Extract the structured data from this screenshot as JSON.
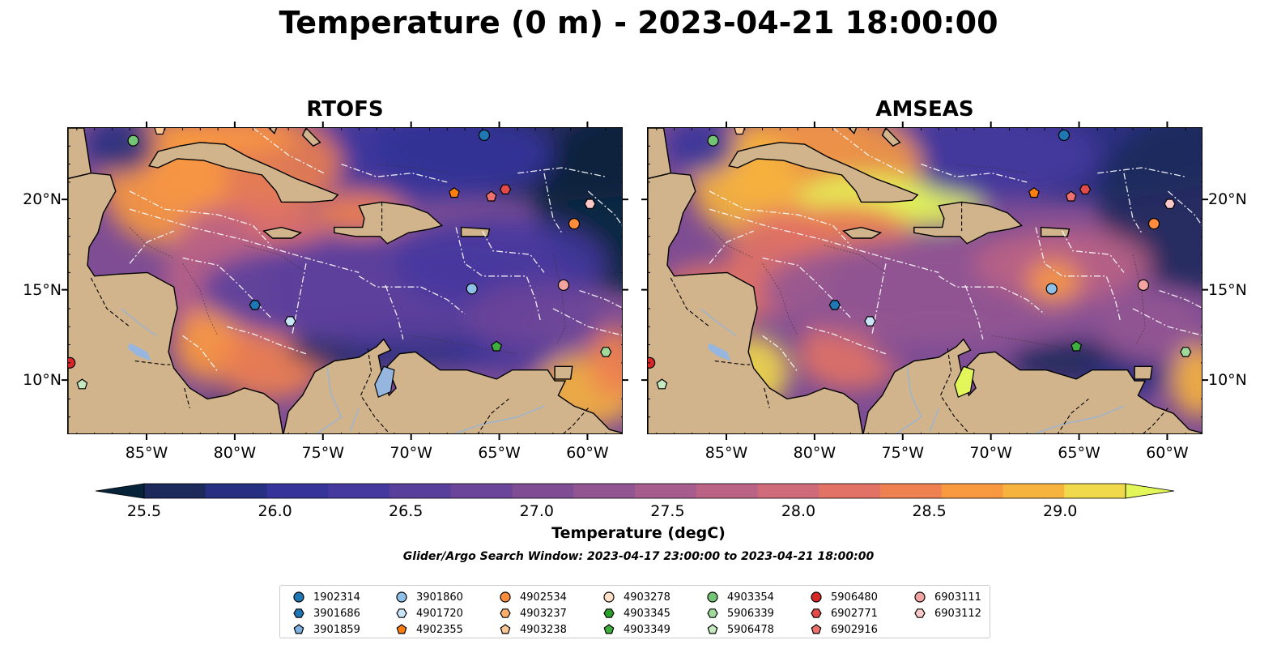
{
  "title": "Temperature (0 m) - 2023-04-21 18:00:00",
  "panels": [
    {
      "title": "RTOFS"
    },
    {
      "title": "AMSEAS"
    }
  ],
  "map": {
    "lon_range": [
      -89.5,
      -58.0
    ],
    "lat_range": [
      7.0,
      24.0
    ],
    "x_ticks": [
      "85°W",
      "80°W",
      "75°W",
      "70°W",
      "65°W",
      "60°W"
    ],
    "x_tick_values": [
      -85,
      -80,
      -75,
      -70,
      -65,
      -60
    ],
    "y_ticks": [
      "20°N",
      "15°N",
      "10°N"
    ],
    "y_tick_values": [
      20,
      15,
      10
    ],
    "land_color": "#d2b48c",
    "amseas_no_data_color": "#96b6df"
  },
  "colorbar": {
    "label": "Temperature (degC)",
    "ticks": [
      "25.5",
      "26.0",
      "26.5",
      "27.0",
      "27.5",
      "28.0",
      "28.5",
      "29.0"
    ],
    "tick_values": [
      25.5,
      26.0,
      26.5,
      27.0,
      27.5,
      28.0,
      28.5,
      29.0
    ],
    "range": [
      25.5,
      29.25
    ],
    "colormap": "thermal",
    "colors": [
      "#06233a",
      "#1c2a5b",
      "#262f82",
      "#36349b",
      "#45389f",
      "#593f9c",
      "#6b4599",
      "#7e4d94",
      "#925592",
      "#a65c8c",
      "#ba6385",
      "#cf6a7a",
      "#e17265",
      "#ee814f",
      "#f89940",
      "#f6b43f",
      "#f0d94a",
      "#e3f659"
    ],
    "extend": "both"
  },
  "search_window": "Glider/Argo Search Window: 2023-04-17 23:00:00 to 2023-04-21 18:00:00",
  "legend": [
    {
      "id": "1902314",
      "marker": "circle",
      "color": "#1f77b4"
    },
    {
      "id": "3901686",
      "marker": "hexagon",
      "color": "#1f77b4"
    },
    {
      "id": "3901859",
      "marker": "pentagon",
      "color": "#7cb1e0"
    },
    {
      "id": "3901860",
      "marker": "circle",
      "color": "#8fc1e8"
    },
    {
      "id": "4901720",
      "marker": "hexagon",
      "color": "#c9e5f7"
    },
    {
      "id": "4902355",
      "marker": "pentagon",
      "color": "#ff7f0e"
    },
    {
      "id": "4902534",
      "marker": "circle",
      "color": "#fd8d3c"
    },
    {
      "id": "4903237",
      "marker": "hexagon",
      "color": "#fdae6b"
    },
    {
      "id": "4903238",
      "marker": "pentagon",
      "color": "#fdc895"
    },
    {
      "id": "4903278",
      "marker": "circle",
      "color": "#fde0c6"
    },
    {
      "id": "4903345",
      "marker": "hexagon",
      "color": "#2ca02c"
    },
    {
      "id": "4903349",
      "marker": "pentagon",
      "color": "#3fae3f"
    },
    {
      "id": "4903354",
      "marker": "circle",
      "color": "#74c476"
    },
    {
      "id": "5906339",
      "marker": "hexagon",
      "color": "#a1d99b"
    },
    {
      "id": "5906478",
      "marker": "pentagon",
      "color": "#c7e9c0"
    },
    {
      "id": "5906480",
      "marker": "circle",
      "color": "#d62728"
    },
    {
      "id": "6902771",
      "marker": "hexagon",
      "color": "#e34a4a"
    },
    {
      "id": "6902916",
      "marker": "pentagon",
      "color": "#f07070"
    },
    {
      "id": "6903111",
      "marker": "circle",
      "color": "#f4a3a3"
    },
    {
      "id": "6903112",
      "marker": "hexagon",
      "color": "#fac8c8"
    }
  ],
  "floats": [
    {
      "id": "4903354",
      "lon": -85.8,
      "lat": 23.3
    },
    {
      "id": "1902314",
      "lon": -65.9,
      "lat": 23.6
    },
    {
      "id": "4903238",
      "lon": -84.3,
      "lat": 23.9
    },
    {
      "id": "4902355",
      "lon": -67.6,
      "lat": 20.4
    },
    {
      "id": "6902916",
      "lon": -65.5,
      "lat": 20.2
    },
    {
      "id": "6902771",
      "lon": -64.7,
      "lat": 20.6
    },
    {
      "id": "6903112",
      "lon": -59.9,
      "lat": 19.8
    },
    {
      "id": "4902534",
      "lon": -60.8,
      "lat": 18.7
    },
    {
      "id": "6903111",
      "lon": -61.4,
      "lat": 15.3
    },
    {
      "id": "3901860",
      "lon": -66.6,
      "lat": 15.1
    },
    {
      "id": "3901686",
      "lon": -78.9,
      "lat": 14.2
    },
    {
      "id": "4901720",
      "lon": -76.9,
      "lat": 13.3
    },
    {
      "id": "4903349",
      "lon": -65.2,
      "lat": 11.9
    },
    {
      "id": "5906339",
      "lon": -59.0,
      "lat": 11.6
    },
    {
      "id": "5906480",
      "lon": -89.4,
      "lat": 11.0
    },
    {
      "id": "5906478",
      "lon": -88.7,
      "lat": 9.8
    }
  ]
}
